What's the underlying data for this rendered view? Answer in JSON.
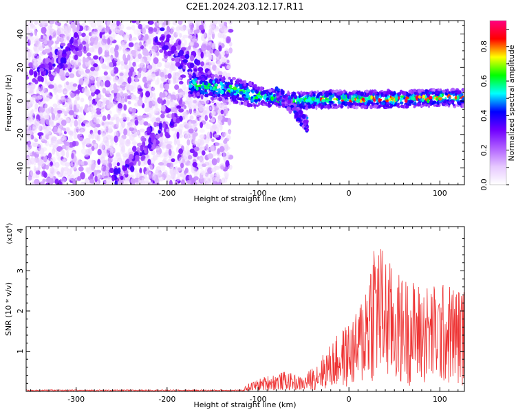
{
  "title": "C2E1.2024.203.12.17.R11",
  "chart_data": [
    {
      "type": "heatmap",
      "xlabel": "Height of straight line (km)",
      "ylabel": "Frequency (Hz)",
      "xlim": [
        -355,
        127
      ],
      "ylim": [
        -50,
        48
      ],
      "x_ticks": [
        -300,
        -200,
        -100,
        0,
        100
      ],
      "y_ticks": [
        -40,
        -20,
        0,
        20,
        40
      ],
      "colorbar": {
        "label": "Normalized spectral amplitude",
        "range": [
          0,
          0.95
        ],
        "ticks": [
          0.0,
          0.2,
          0.4,
          0.6,
          0.8
        ],
        "colors": [
          "#ffffff",
          "#e6c8ff",
          "#b060ff",
          "#7000ff",
          "#0000ff",
          "#00ffff",
          "#00ff00",
          "#ffff00",
          "#ff0000",
          "#ff0080"
        ]
      },
      "description_features": {
        "broadband_region_x": [
          -355,
          -130
        ],
        "spectral_line": [
          {
            "x": -175,
            "y": 10
          },
          {
            "x": -130,
            "y": 7
          },
          {
            "x": -100,
            "y": 3
          },
          {
            "x": -60,
            "y": 0
          },
          {
            "x": -20,
            "y": 1
          },
          {
            "x": 0,
            "y": 1
          },
          {
            "x": 50,
            "y": 1
          },
          {
            "x": 100,
            "y": 2
          },
          {
            "x": 127,
            "y": 2
          }
        ],
        "secondary_branch": [
          {
            "x": -80,
            "y": 5
          },
          {
            "x": -60,
            "y": -5
          },
          {
            "x": -45,
            "y": -15
          }
        ]
      }
    },
    {
      "type": "line",
      "xlabel": "Height of straight line (km)",
      "ylabel": "SNR (10 * v/v)",
      "y_multiplier_label": "(x10",
      "y_multiplier_exp": "4",
      "xlim": [
        -355,
        127
      ],
      "ylim": [
        0,
        4.1
      ],
      "x_ticks": [
        -300,
        -200,
        -100,
        0,
        100
      ],
      "y_ticks": [
        1,
        2,
        3,
        4
      ],
      "color": "#ee3333",
      "envelope": [
        {
          "x": -355,
          "y": 0.02
        },
        {
          "x": -120,
          "y": 0.03
        },
        {
          "x": -110,
          "y": 0.2
        },
        {
          "x": -90,
          "y": 0.4
        },
        {
          "x": -70,
          "y": 0.5
        },
        {
          "x": -50,
          "y": 0.35
        },
        {
          "x": -30,
          "y": 0.9
        },
        {
          "x": -10,
          "y": 1.5
        },
        {
          "x": 10,
          "y": 2.0
        },
        {
          "x": 28,
          "y": 4.1
        },
        {
          "x": 50,
          "y": 3.0
        },
        {
          "x": 80,
          "y": 2.7
        },
        {
          "x": 110,
          "y": 2.7
        },
        {
          "x": 127,
          "y": 2.6
        }
      ]
    }
  ]
}
